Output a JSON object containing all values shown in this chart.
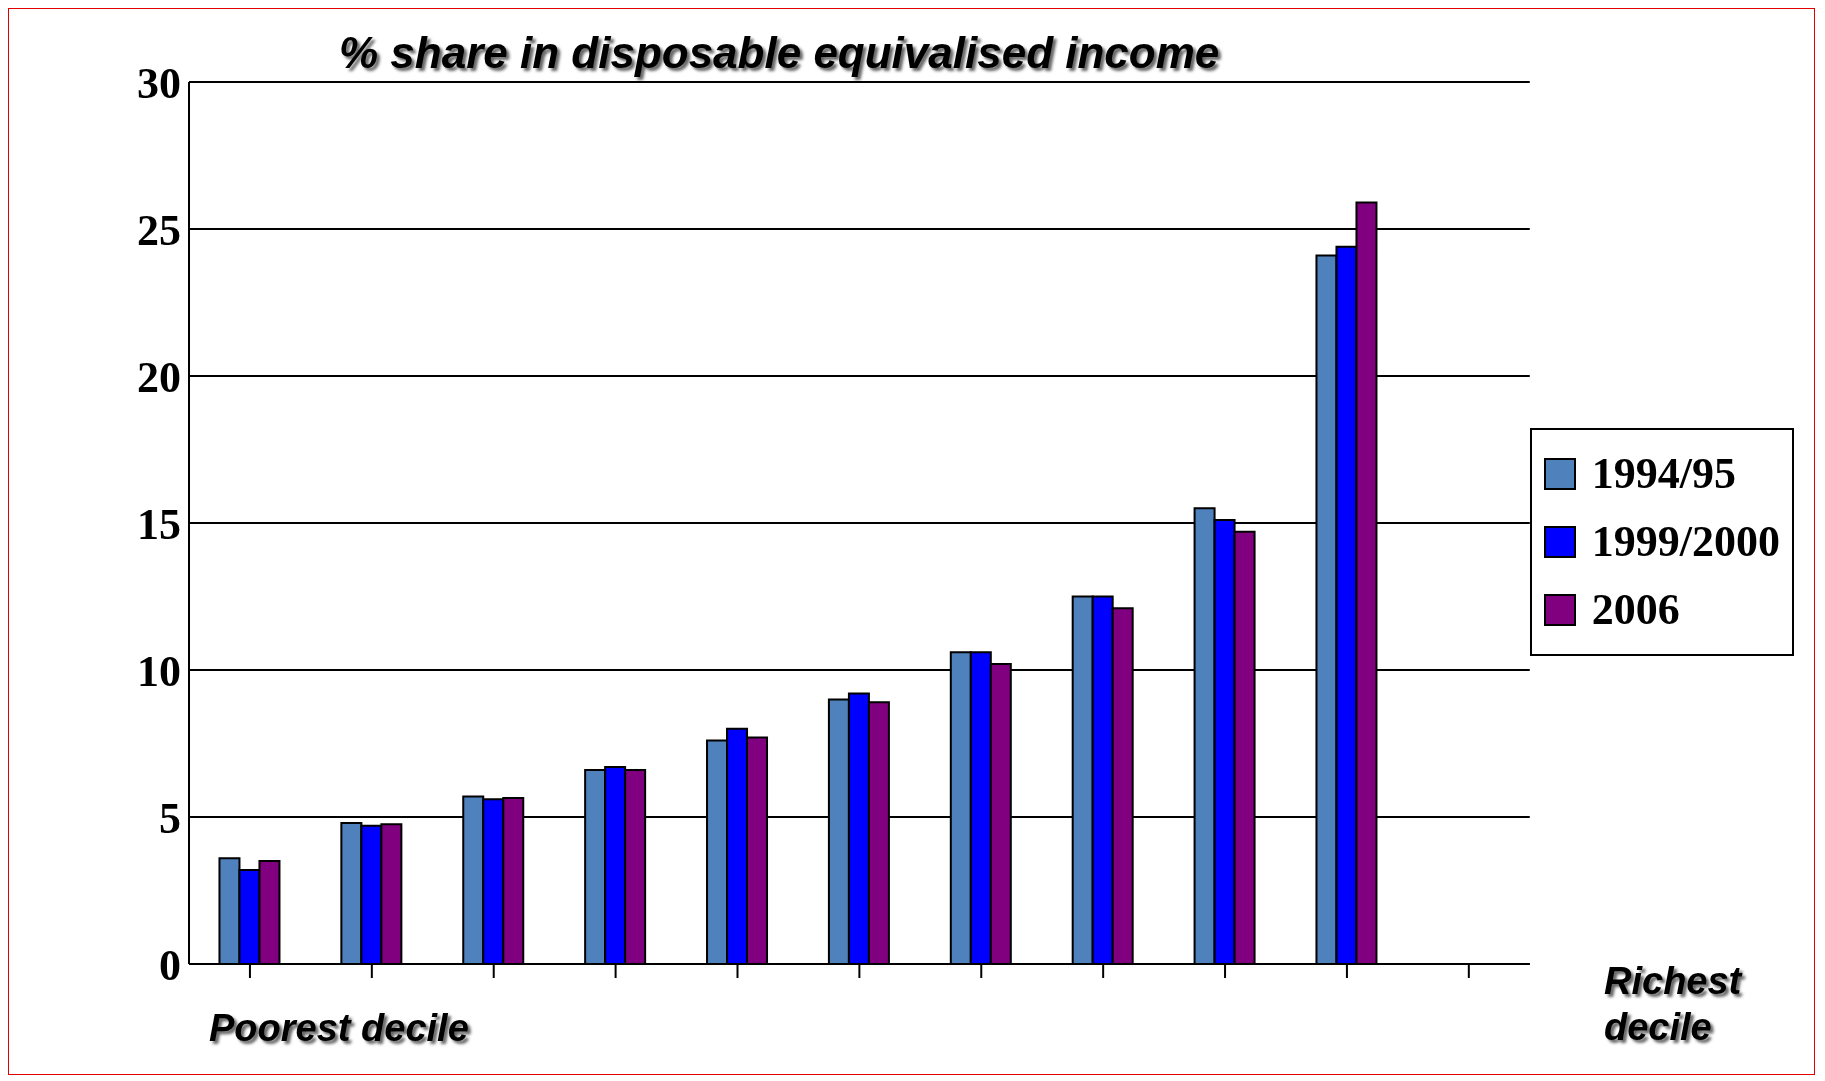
{
  "chart_data": {
    "type": "bar",
    "title": "% share in disposable equivalised income",
    "categories": [
      null,
      null,
      null,
      null,
      null,
      null,
      null,
      null,
      null,
      null,
      null
    ],
    "series": [
      {
        "name": "1994/95",
        "color": "#4f81bd",
        "values": [
          3.6,
          4.8,
          5.7,
          6.6,
          7.6,
          9.0,
          10.6,
          12.5,
          15.5,
          24.1,
          null
        ]
      },
      {
        "name": "1999/2000",
        "color": "#0000ff",
        "values": [
          3.2,
          4.7,
          5.6,
          6.7,
          8.0,
          9.2,
          10.6,
          12.5,
          15.1,
          24.4,
          null
        ]
      },
      {
        "name": "2006",
        "color": "#800080",
        "values": [
          3.5,
          4.75,
          5.65,
          6.6,
          7.7,
          8.9,
          10.2,
          12.1,
          14.7,
          25.9,
          null
        ]
      }
    ],
    "ylim": [
      0,
      30
    ],
    "yticks": [
      0,
      5,
      10,
      15,
      20,
      25,
      30
    ],
    "grid": "y",
    "legend": "right",
    "annotations": [
      "Poorest decile",
      "Richest decile"
    ]
  }
}
